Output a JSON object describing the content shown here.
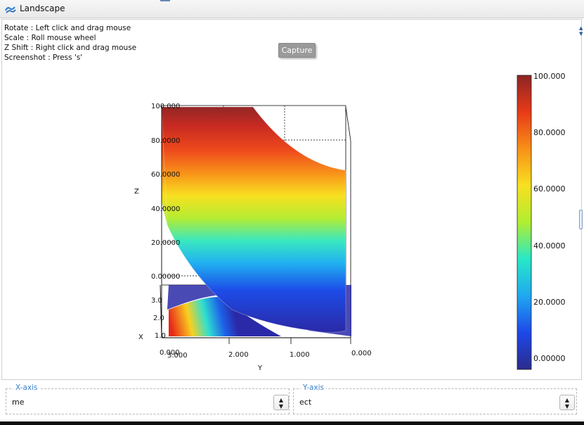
{
  "window": {
    "title": "Landscape",
    "icon": "landscape-app-icon"
  },
  "help_lines": [
    "Rotate : Left click and drag mouse",
    "Scale : Roll mouse wheel",
    "Z Shift : Right click and drag mouse",
    "Screenshot : Press 's'"
  ],
  "capture_label": "Capture",
  "plot": {
    "axis_z_label": "Z",
    "axis_x_label": "X",
    "axis_y_label": "Y",
    "z_ticks": [
      "100.000",
      "80.0000",
      "60.0000",
      "40.0000",
      "20.0000",
      "0.00000"
    ],
    "x_ticks": [
      "3.0",
      "2.0",
      "1.0",
      "0.000"
    ],
    "y_ticks": [
      "3.000",
      "2.000",
      "1.000",
      "0.000"
    ]
  },
  "colorbar": {
    "ticks": [
      "100.000",
      "80.0000",
      "60.0000",
      "40.0000",
      "20.0000",
      "0.00000"
    ],
    "colors": [
      "#2b2b8c",
      "#1d48e8",
      "#1fa8f0",
      "#28e8c8",
      "#b0ee30",
      "#f8e020",
      "#f89018",
      "#e83a18",
      "#8c2424"
    ]
  },
  "x_axis_group": {
    "title": "X-axis",
    "value": "me"
  },
  "y_axis_group": {
    "title": "Y-axis",
    "value": "ect"
  }
}
